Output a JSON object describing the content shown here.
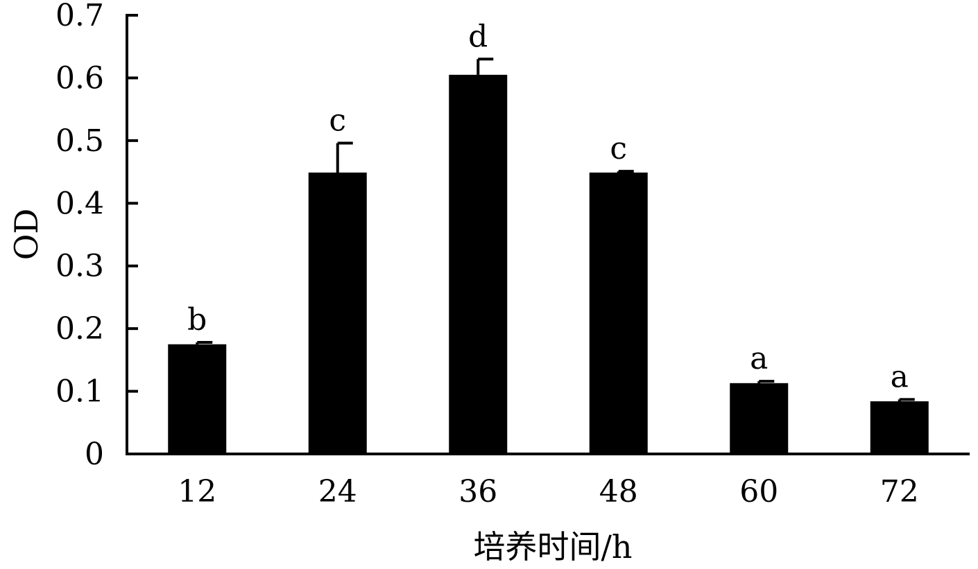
{
  "chart_data": {
    "type": "bar",
    "categories": [
      "12",
      "24",
      "36",
      "48",
      "60",
      "72"
    ],
    "values": [
      0.175,
      0.449,
      0.605,
      0.449,
      0.113,
      0.084
    ],
    "errors": [
      0.003,
      0.047,
      0.025,
      0.002,
      0.003,
      0.003
    ],
    "significance_letters": [
      "b",
      "c",
      "d",
      "c",
      "a",
      "a"
    ],
    "ylabel": "OD",
    "xlabel": "培养时间/h",
    "ylim": [
      0,
      0.7
    ],
    "yticks": [
      "0",
      "0.1",
      "0.2",
      "0.3",
      "0.4",
      "0.5",
      "0.6",
      "0.7"
    ],
    "grid": false,
    "bar_color": "#000000"
  }
}
